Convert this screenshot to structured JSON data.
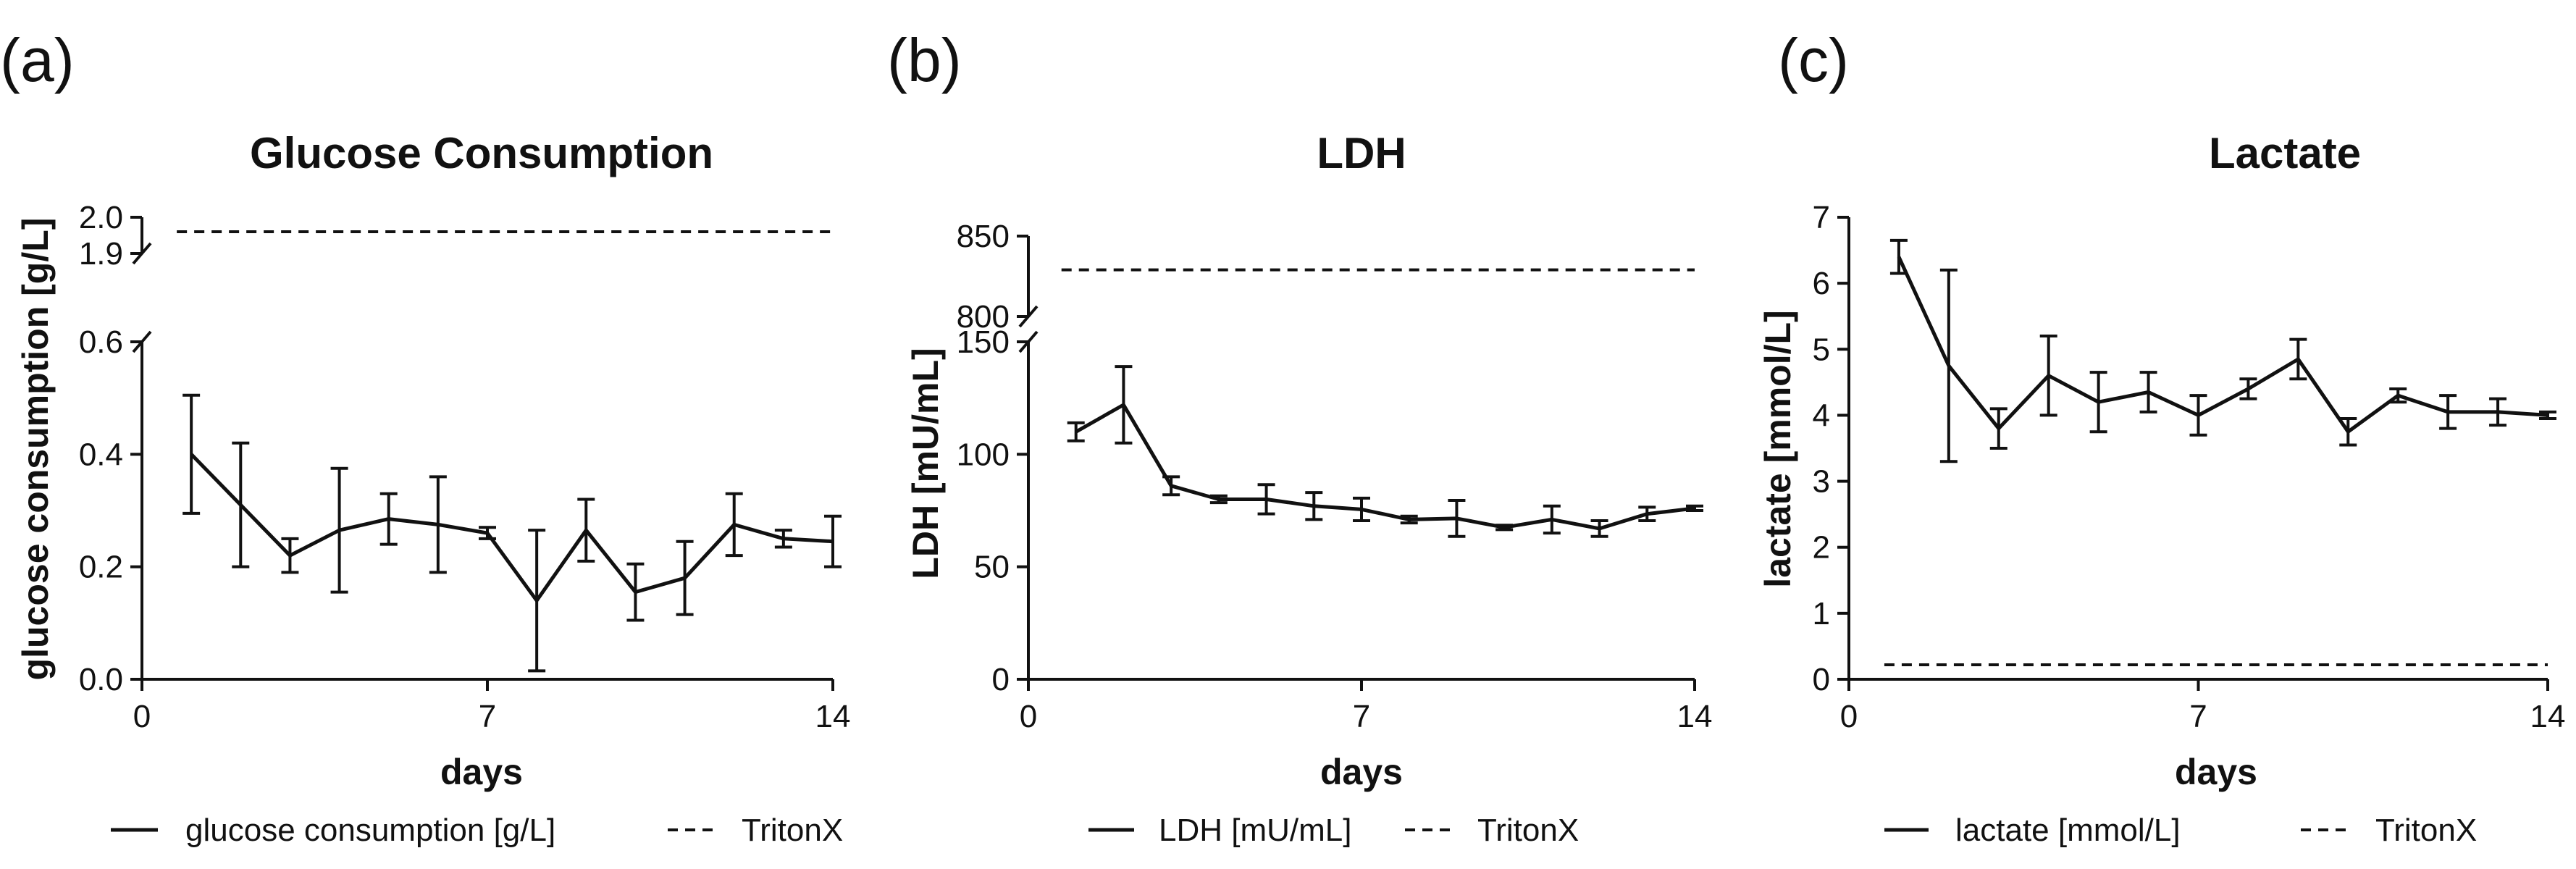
{
  "chart_data": [
    {
      "type": "line",
      "panel_label": "(a)",
      "title": "Glucose Consumption",
      "xlabel": "days",
      "ylabel": "glucose consumption [g/L]",
      "xlim": [
        0,
        14
      ],
      "xticks": [
        "0",
        "7",
        "14"
      ],
      "y_broken": true,
      "ylim_lower": [
        0,
        0.6
      ],
      "ylim_upper": [
        1.9,
        2.0
      ],
      "yticks_lower": [
        "0.0",
        "0.2",
        "0.4",
        "0.6"
      ],
      "yticks_upper": [
        "1.9",
        "2.0"
      ],
      "series": [
        {
          "name": "glucose consumption [g/L]",
          "style": "solid",
          "x": [
            1,
            2,
            3,
            4,
            5,
            6,
            7,
            8,
            9,
            10,
            11,
            12,
            13,
            14
          ],
          "values": [
            0.4,
            0.31,
            0.22,
            0.265,
            0.285,
            0.275,
            0.26,
            0.14,
            0.265,
            0.155,
            0.18,
            0.275,
            0.25,
            0.245
          ],
          "errors": [
            0.105,
            0.11,
            0.03,
            0.11,
            0.045,
            0.085,
            0.01,
            0.125,
            0.055,
            0.05,
            0.065,
            0.055,
            0.015,
            0.045
          ]
        },
        {
          "name": "TritonX",
          "style": "dashed",
          "x": [
            1,
            14
          ],
          "values": [
            1.96,
            1.96
          ]
        }
      ],
      "legend": [
        "glucose consumption [g/L]",
        "TritonX"
      ]
    },
    {
      "type": "line",
      "panel_label": "(b)",
      "title": "LDH",
      "xlabel": "days",
      "ylabel": "LDH [mU/mL]",
      "xlim": [
        0,
        14
      ],
      "xticks": [
        "0",
        "7",
        "14"
      ],
      "y_broken": true,
      "ylim_lower": [
        0,
        150
      ],
      "ylim_upper": [
        800,
        850
      ],
      "yticks_lower": [
        "0",
        "50",
        "100",
        "150"
      ],
      "yticks_upper": [
        "800",
        "850"
      ],
      "series": [
        {
          "name": "LDH [mU/mL]",
          "style": "solid",
          "x": [
            1,
            2,
            3,
            4,
            5,
            6,
            7,
            8,
            9,
            10,
            11,
            12,
            13,
            14
          ],
          "values": [
            110,
            122,
            86,
            80,
            80,
            77,
            75.5,
            71,
            71.5,
            67.5,
            71,
            67,
            73.5,
            76
          ],
          "errors": [
            4,
            17,
            4,
            1.5,
            6.5,
            6,
            5,
            1.5,
            8,
            1,
            6,
            3.5,
            3,
            1
          ]
        },
        {
          "name": "TritonX",
          "style": "dashed",
          "x": [
            1,
            14
          ],
          "values": [
            829,
            829
          ]
        }
      ],
      "legend": [
        "LDH [mU/mL]",
        "TritonX"
      ]
    },
    {
      "type": "line",
      "panel_label": "(c)",
      "title": "Lactate",
      "xlabel": "days",
      "ylabel": "lactate [mmol/L]",
      "xlim": [
        0,
        14
      ],
      "xticks": [
        "0",
        "7",
        "14"
      ],
      "y_broken": false,
      "ylim": [
        0,
        7
      ],
      "yticks": [
        "0",
        "1",
        "2",
        "3",
        "4",
        "5",
        "6",
        "7"
      ],
      "series": [
        {
          "name": "lactate [mmol/L]",
          "style": "solid",
          "x": [
            1,
            2,
            3,
            4,
            5,
            6,
            7,
            8,
            9,
            10,
            11,
            12,
            13,
            14
          ],
          "values": [
            6.4,
            4.75,
            3.8,
            4.6,
            4.2,
            4.35,
            4.0,
            4.4,
            4.85,
            3.75,
            4.3,
            4.05,
            4.05,
            4.0
          ],
          "errors": [
            0.25,
            1.45,
            0.3,
            0.6,
            0.45,
            0.3,
            0.3,
            0.15,
            0.3,
            0.2,
            0.1,
            0.25,
            0.2,
            0.05
          ]
        },
        {
          "name": "TritonX",
          "style": "dashed",
          "x": [
            1,
            14
          ],
          "values": [
            0.22,
            0.22
          ]
        }
      ],
      "legend": [
        "lactate [mmol/L]",
        "TritonX"
      ]
    }
  ]
}
